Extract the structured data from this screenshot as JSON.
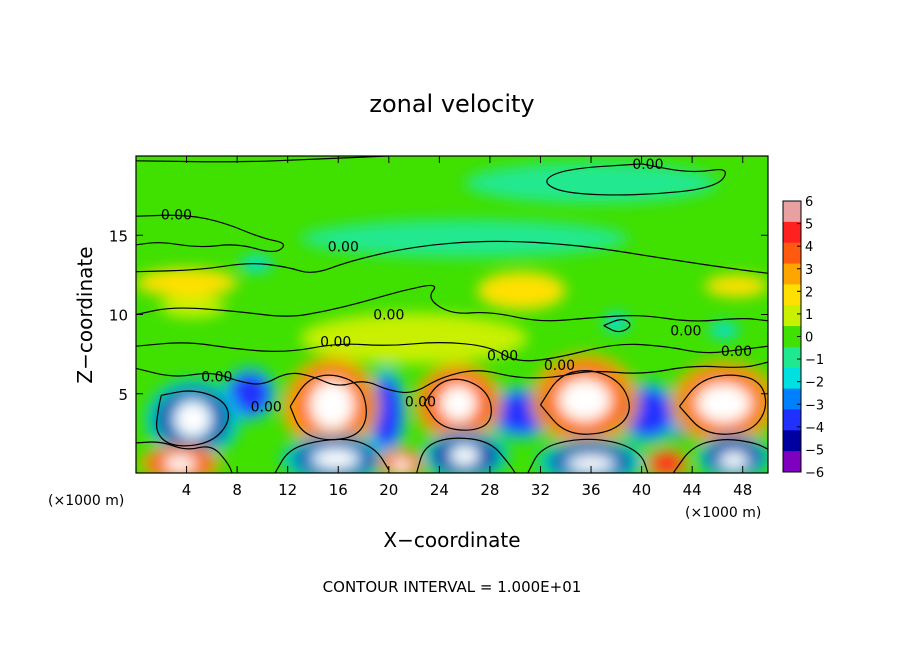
{
  "chart_data": {
    "type": "heatmap",
    "title": "zonal velocity",
    "xlabel": "X−coordinate",
    "ylabel": "Z−coordinate",
    "x_unit": "(×1000 m)",
    "y_unit": "(×1000 m)",
    "xlim": [
      0,
      50
    ],
    "ylim": [
      0,
      20
    ],
    "x_ticks": [
      4,
      8,
      12,
      16,
      20,
      24,
      28,
      32,
      36,
      40,
      44,
      48
    ],
    "y_ticks": [
      5,
      10,
      15
    ],
    "footer": "CONTOUR INTERVAL = 1.000E+01",
    "colorbar": {
      "min": -6,
      "max": 6,
      "ticks": [
        6,
        5,
        4,
        3,
        2,
        1,
        0,
        -1,
        -2,
        -3,
        -4,
        -5,
        -6
      ],
      "tick_labels": [
        "6",
        "5",
        "4",
        "3",
        "2",
        "1",
        "0",
        "−1",
        "−2",
        "−3",
        "−4",
        "−5",
        "−6"
      ],
      "colors": [
        "#e8a0a0",
        "#ff2020",
        "#ff5a10",
        "#ffa500",
        "#ffe000",
        "#c8f000",
        "#40e000",
        "#20e890",
        "#00e0e0",
        "#0080ff",
        "#2030ff",
        "#0000a0",
        "#8000c0"
      ]
    },
    "contour_labels": [
      {
        "text": "0.00",
        "x": 40.5,
        "z": 19.5
      },
      {
        "text": "0.00",
        "x": 3.2,
        "z": 16.3
      },
      {
        "text": "0.00",
        "x": 16.4,
        "z": 14.3
      },
      {
        "text": "0.00",
        "x": 20.0,
        "z": 10.0
      },
      {
        "text": "0.00",
        "x": 43.5,
        "z": 9.0
      },
      {
        "text": "0.00",
        "x": 15.8,
        "z": 8.3
      },
      {
        "text": "0.00",
        "x": 6.4,
        "z": 6.1
      },
      {
        "text": "0.00",
        "x": 10.3,
        "z": 4.2
      },
      {
        "text": "0.00",
        "x": 22.5,
        "z": 4.5
      },
      {
        "text": "0.00",
        "x": 29.0,
        "z": 7.4
      },
      {
        "text": "0.00",
        "x": 33.5,
        "z": 6.8
      },
      {
        "text": "0.00",
        "x": 47.5,
        "z": 7.7
      }
    ],
    "features": [
      {
        "x": 4.5,
        "z": 3.4,
        "rx": 2.8,
        "rz": 1.9,
        "v": -5
      },
      {
        "x": 4.5,
        "z": 3.4,
        "rx": 1.4,
        "rz": 1.1,
        "v": -6
      },
      {
        "x": 15.5,
        "z": 4.3,
        "rx": 2.8,
        "rz": 2.3,
        "v": 5
      },
      {
        "x": 15.5,
        "z": 4.3,
        "rx": 1.7,
        "rz": 1.5,
        "v": 6
      },
      {
        "x": 25.5,
        "z": 4.4,
        "rx": 2.6,
        "rz": 1.9,
        "v": 5
      },
      {
        "x": 25.5,
        "z": 4.4,
        "rx": 1.4,
        "rz": 1.1,
        "v": 6
      },
      {
        "x": 35.5,
        "z": 4.6,
        "rx": 3.2,
        "rz": 2.2,
        "v": 5
      },
      {
        "x": 35.5,
        "z": 4.6,
        "rx": 2.0,
        "rz": 1.3,
        "v": 6
      },
      {
        "x": 46.5,
        "z": 4.4,
        "rx": 3.2,
        "rz": 2.0,
        "v": 5
      },
      {
        "x": 46.5,
        "z": 4.4,
        "rx": 2.1,
        "rz": 1.2,
        "v": 6
      },
      {
        "x": 9.0,
        "z": 5.0,
        "rx": 1.6,
        "rz": 1.3,
        "v": -4
      },
      {
        "x": 19.8,
        "z": 3.8,
        "rx": 1.2,
        "rz": 2.2,
        "v": -4
      },
      {
        "x": 30.5,
        "z": 3.8,
        "rx": 2.2,
        "rz": 1.3,
        "v": -4
      },
      {
        "x": 40.5,
        "z": 3.8,
        "rx": 2.0,
        "rz": 1.5,
        "v": -4
      },
      {
        "x": 3.5,
        "z": 0.6,
        "rx": 2.4,
        "rz": 0.9,
        "v": 5
      },
      {
        "x": 3.5,
        "z": 0.6,
        "rx": 1.2,
        "rz": 0.5,
        "v": 6
      },
      {
        "x": 15.8,
        "z": 0.9,
        "rx": 3.2,
        "rz": 1.2,
        "v": -5
      },
      {
        "x": 15.8,
        "z": 0.9,
        "rx": 1.8,
        "rz": 0.6,
        "v": -6
      },
      {
        "x": 21.0,
        "z": 0.6,
        "rx": 1.4,
        "rz": 0.7,
        "v": 5
      },
      {
        "x": 21.0,
        "z": 0.5,
        "rx": 0.7,
        "rz": 0.4,
        "v": 6
      },
      {
        "x": 26.0,
        "z": 1.1,
        "rx": 2.6,
        "rz": 1.2,
        "v": -5
      },
      {
        "x": 26.0,
        "z": 1.1,
        "rx": 1.1,
        "rz": 0.6,
        "v": -6
      },
      {
        "x": 36.0,
        "z": 0.7,
        "rx": 3.2,
        "rz": 1.1,
        "v": -5
      },
      {
        "x": 36.0,
        "z": 0.6,
        "rx": 1.8,
        "rz": 0.5,
        "v": -6
      },
      {
        "x": 42.0,
        "z": 0.6,
        "rx": 1.3,
        "rz": 0.7,
        "v": 5
      },
      {
        "x": 47.3,
        "z": 1.0,
        "rx": 2.2,
        "rz": 1.1,
        "v": -5
      },
      {
        "x": 47.3,
        "z": 0.8,
        "rx": 1.1,
        "rz": 0.5,
        "v": -6
      },
      {
        "x": 12.5,
        "z": 4.0,
        "rx": 0.9,
        "rz": 1.4,
        "v": 3
      },
      {
        "x": 43.0,
        "z": 3.5,
        "rx": 1.0,
        "rz": 1.3,
        "v": -3
      },
      {
        "x": 30.5,
        "z": 11.5,
        "rx": 3.5,
        "rz": 1.2,
        "v": 2
      },
      {
        "x": 4.0,
        "z": 12.0,
        "rx": 4.0,
        "rz": 0.9,
        "v": 1.5
      },
      {
        "x": 4.5,
        "z": 10.5,
        "rx": 2.6,
        "rz": 0.7,
        "v": 1.2
      },
      {
        "x": 47.5,
        "z": 11.8,
        "rx": 2.5,
        "rz": 0.7,
        "v": 1.5
      },
      {
        "x": 9.5,
        "z": 13.2,
        "rx": 1.3,
        "rz": 0.5,
        "v": -2
      },
      {
        "x": 26.0,
        "z": 14.8,
        "rx": 13.0,
        "rz": 1.2,
        "v": -0.7
      },
      {
        "x": 36.0,
        "z": 18.3,
        "rx": 10.0,
        "rz": 1.3,
        "v": -0.8
      },
      {
        "x": 38.0,
        "z": 9.5,
        "rx": 1.0,
        "rz": 0.6,
        "v": -2.3
      },
      {
        "x": 46.5,
        "z": 9.0,
        "rx": 1.2,
        "rz": 0.5,
        "v": -2.3
      },
      {
        "x": 22.0,
        "z": 8.5,
        "rx": 9.0,
        "rz": 1.6,
        "v": 0.8
      }
    ]
  }
}
